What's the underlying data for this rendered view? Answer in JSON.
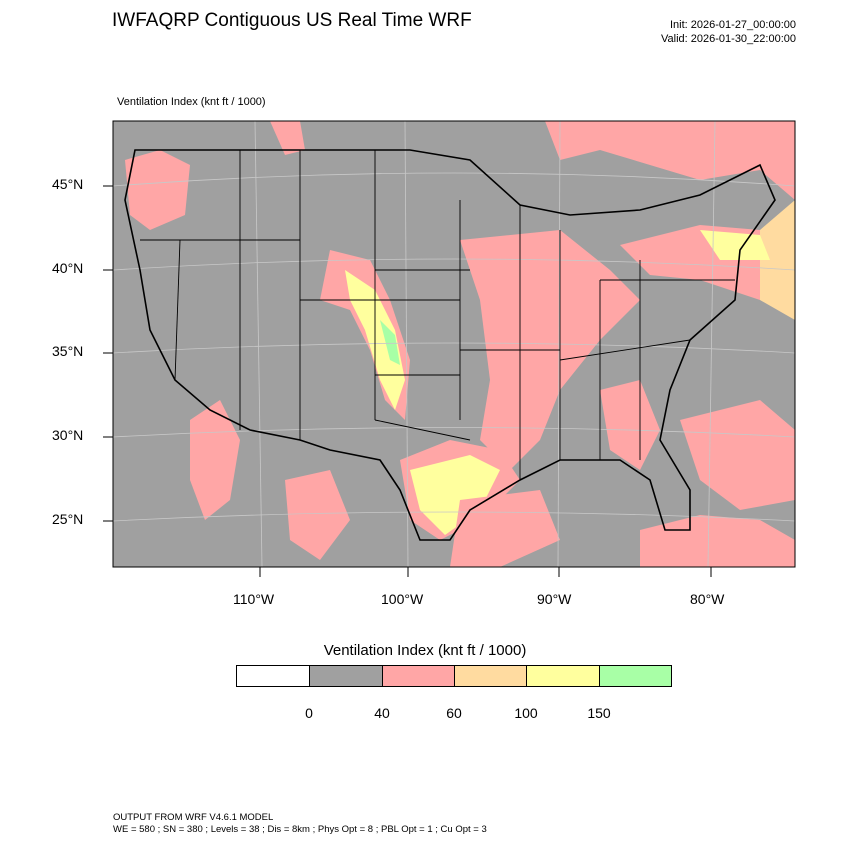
{
  "header": {
    "title": "IWFAQRP Contiguous US Real Time WRF",
    "init": "Init: 2026-01-27_00:00:00",
    "valid": "Valid: 2026-01-30_22:00:00"
  },
  "field_label": "Ventilation Index   (knt ft / 1000)",
  "map": {
    "lat_labels": [
      "45°N",
      "40°N",
      "35°N",
      "30°N",
      "25°N"
    ],
    "lon_labels": [
      "110°W",
      "100°W",
      "90°W",
      "80°W"
    ],
    "colors": {
      "land_low": "#a0a0a0",
      "c40_60": "#ffa6a6",
      "c60_100": "#ffdba0",
      "c100_150": "#ffff9e",
      "c150_plus": "#a8ffa6",
      "background": "#ffffff"
    }
  },
  "colorbar": {
    "title": "Ventilation Index  (knt ft / 1000)",
    "colors": [
      "#ffffff",
      "#a0a0a0",
      "#ffa6a6",
      "#ffdba0",
      "#ffff9e",
      "#a8ffa6"
    ],
    "labels": [
      "0",
      "40",
      "60",
      "100",
      "150"
    ]
  },
  "footer": {
    "line1": "OUTPUT FROM WRF V4.6.1 MODEL",
    "line2": "WE = 580 ; SN = 380 ; Levels = 38 ; Dis = 8km ; Phys Opt = 8 ; PBL Opt = 1 ; Cu Opt = 3"
  }
}
